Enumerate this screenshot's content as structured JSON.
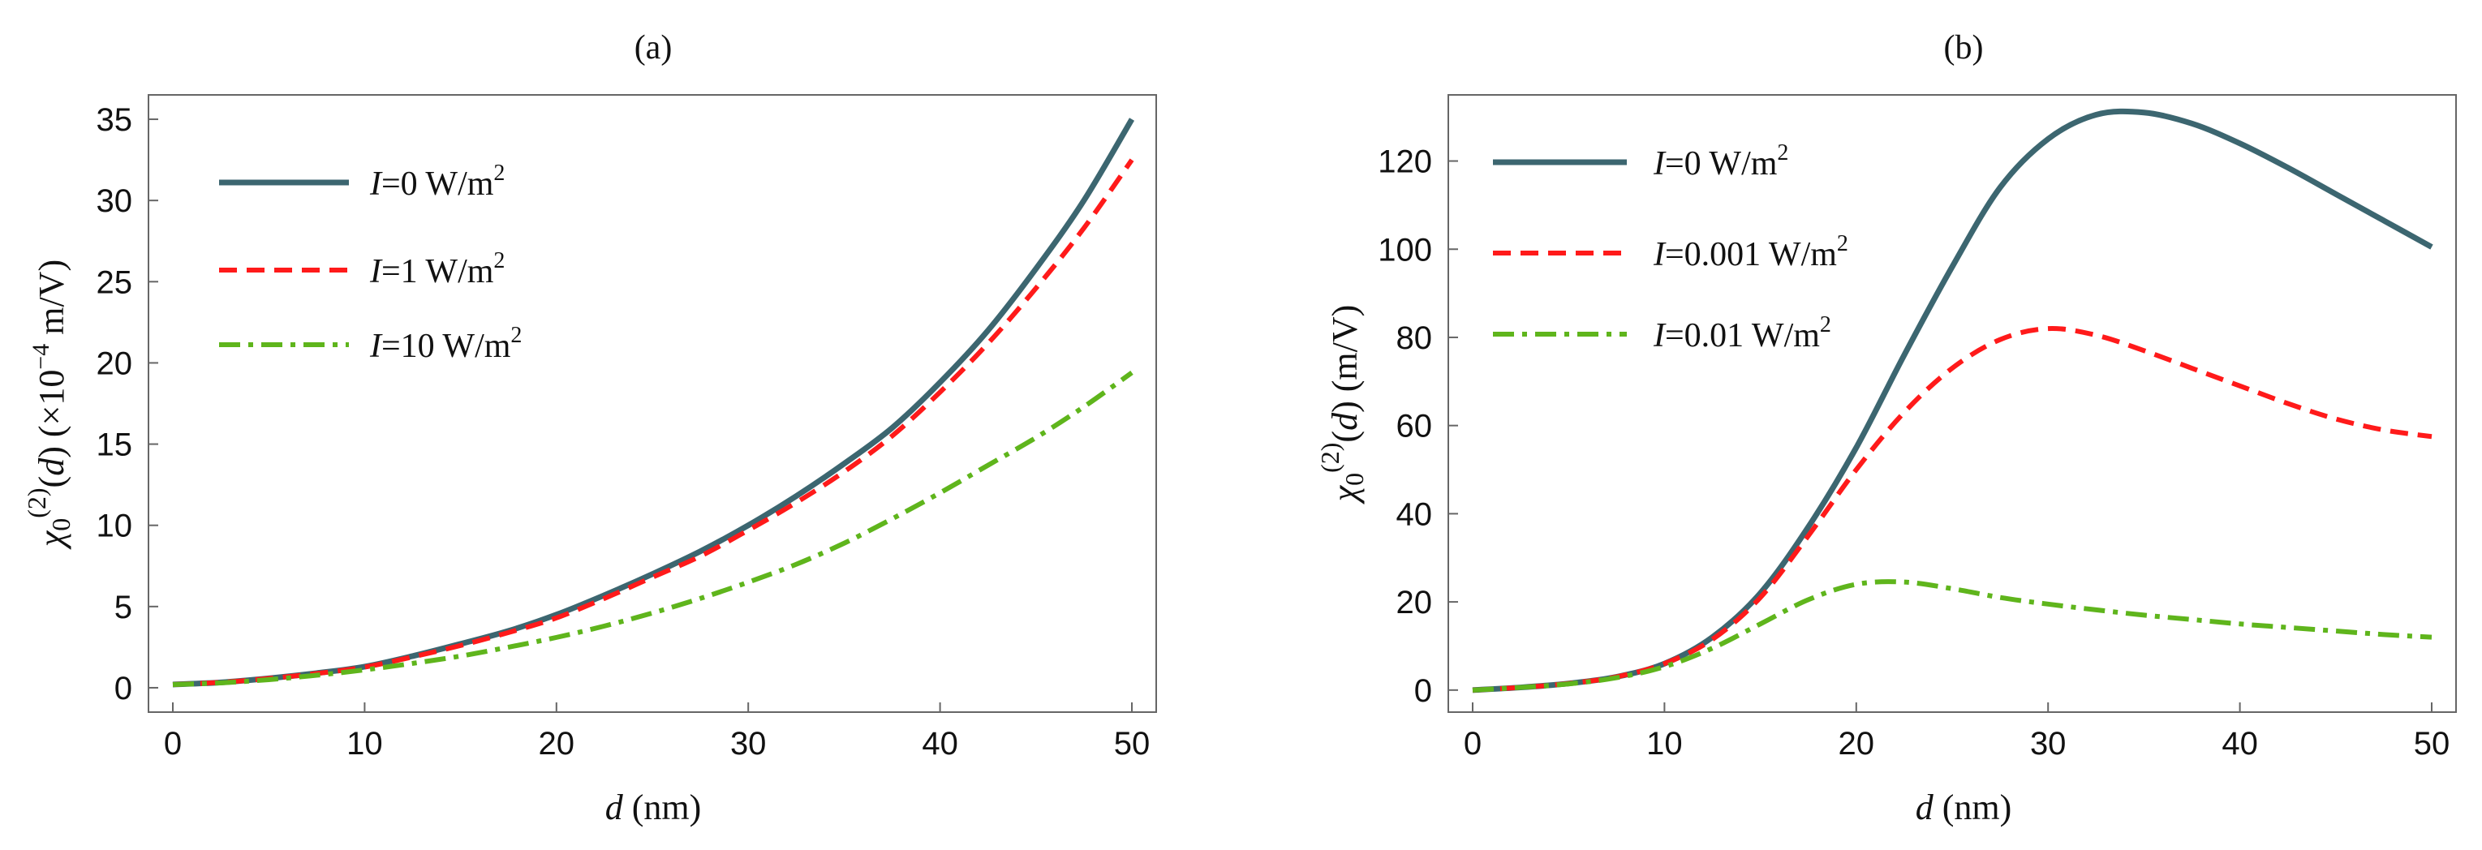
{
  "colors": {
    "solid": "#3c6670",
    "dashed": "#ff1a1a",
    "dashdot": "#5fb51c"
  },
  "chart_data": [
    {
      "type": "line",
      "panel_label": "(a)",
      "xlabel": {
        "var": "d",
        "unit": " (nm)"
      },
      "ylabel": {
        "chi": "χ",
        "sub": "0",
        "sup": "(2)",
        "arg_open": "(",
        "arg": "d",
        "arg_close": ")",
        "unit_prefix": " (×10",
        "unit_exp": "−4",
        "unit_suffix": " m/V)"
      },
      "xlim": [
        0,
        50
      ],
      "ylim": [
        -1.5,
        36.5
      ],
      "xticks": [
        0,
        10,
        20,
        30,
        40,
        50
      ],
      "yticks": [
        0,
        5,
        10,
        15,
        20,
        25,
        30,
        35
      ],
      "x": [
        0,
        2.5,
        5,
        7.5,
        10,
        12.5,
        15,
        17.5,
        20,
        22.5,
        25,
        27.5,
        30,
        32.5,
        35,
        37.5,
        40,
        42.5,
        45,
        47.5,
        50
      ],
      "series": [
        {
          "name": "I=0",
          "I_var": "I",
          "value_text": "=0 W/m",
          "sup": "2",
          "style": "solid",
          "values": [
            0.2,
            0.33,
            0.58,
            0.9,
            1.3,
            1.95,
            2.7,
            3.5,
            4.5,
            5.7,
            7.0,
            8.4,
            10.0,
            11.8,
            13.8,
            16.0,
            18.8,
            22.0,
            25.8,
            30.0,
            35.0
          ]
        },
        {
          "name": "I=1",
          "I_var": "I",
          "value_text": "=1 W/m",
          "sup": "2",
          "style": "dashed",
          "values": [
            0.2,
            0.33,
            0.57,
            0.88,
            1.27,
            1.9,
            2.6,
            3.4,
            4.3,
            5.5,
            6.8,
            8.1,
            9.7,
            11.4,
            13.3,
            15.5,
            18.2,
            21.2,
            24.6,
            28.3,
            32.5
          ]
        },
        {
          "name": "I=10",
          "I_var": "I",
          "value_text": "=10 W/m",
          "sup": "2",
          "style": "dashdot",
          "values": [
            0.2,
            0.3,
            0.5,
            0.77,
            1.1,
            1.5,
            1.95,
            2.5,
            3.1,
            3.8,
            4.6,
            5.5,
            6.5,
            7.6,
            8.9,
            10.4,
            12.0,
            13.7,
            15.4,
            17.3,
            19.4
          ]
        }
      ]
    },
    {
      "type": "line",
      "panel_label": "(b)",
      "xlabel": {
        "var": "d",
        "unit": " (nm)"
      },
      "ylabel": {
        "chi": "χ",
        "sub": "0",
        "sup": "(2)",
        "arg_open": "(",
        "arg": "d",
        "arg_close": ")",
        "unit_suffix": " (m/V)"
      },
      "xlim": [
        0,
        50
      ],
      "ylim": [
        -5,
        135
      ],
      "xticks": [
        0,
        10,
        20,
        30,
        40,
        50
      ],
      "yticks": [
        0,
        20,
        40,
        60,
        80,
        100,
        120
      ],
      "x": [
        0,
        2.5,
        5,
        7.5,
        10,
        12.5,
        15,
        17.5,
        20,
        22.5,
        25,
        27.5,
        30,
        32.5,
        35,
        37.5,
        40,
        42.5,
        45,
        47.5,
        50
      ],
      "series": [
        {
          "name": "I=0",
          "I_var": "I",
          "value_text": "=0 W/m",
          "sup": "2",
          "style": "solid",
          "values": [
            0,
            0.6,
            1.5,
            3.0,
            6.0,
            12.0,
            22.0,
            37.0,
            55.0,
            76.0,
            96.0,
            114.0,
            125.0,
            130.5,
            131.0,
            128.5,
            124.0,
            118.5,
            112.5,
            106.5,
            100.5
          ]
        },
        {
          "name": "I=0.001",
          "I_var": "I",
          "value_text": "=0.001 W/m",
          "sup": "2",
          "style": "dashed",
          "values": [
            0,
            0.6,
            1.5,
            3.0,
            6.0,
            11.5,
            21.0,
            35.0,
            50.0,
            63.0,
            73.0,
            79.5,
            82.0,
            80.5,
            77.0,
            73.0,
            69.0,
            65.0,
            61.5,
            59.0,
            57.5
          ]
        },
        {
          "name": "I=0.01",
          "I_var": "I",
          "value_text": "=0.01 W/m",
          "sup": "2",
          "style": "dashdot",
          "values": [
            0,
            0.6,
            1.4,
            2.8,
            5.3,
            9.5,
            15.0,
            20.5,
            24.0,
            24.5,
            23.0,
            21.0,
            19.5,
            18.2,
            17.0,
            16.0,
            15.0,
            14.2,
            13.4,
            12.6,
            12.0
          ]
        }
      ]
    }
  ]
}
